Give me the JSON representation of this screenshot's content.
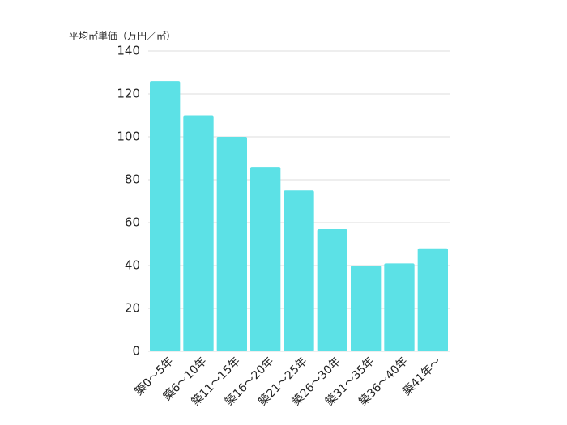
{
  "chart_data": {
    "type": "bar",
    "y_label": "平均㎡単価（万円／㎡）",
    "categories": [
      "築0～5年",
      "築6～10年",
      "築11～15年",
      "築16～20年",
      "築21～25年",
      "築26～30年",
      "築31～35年",
      "築36～40年",
      "築41年～"
    ],
    "values": [
      126,
      110,
      100,
      86,
      75,
      57,
      40,
      41,
      48
    ],
    "color": "#5ce1e6",
    "ylim": [
      0,
      140
    ],
    "yticks": [
      0,
      20,
      40,
      60,
      80,
      100,
      120,
      140
    ],
    "grid": true
  }
}
